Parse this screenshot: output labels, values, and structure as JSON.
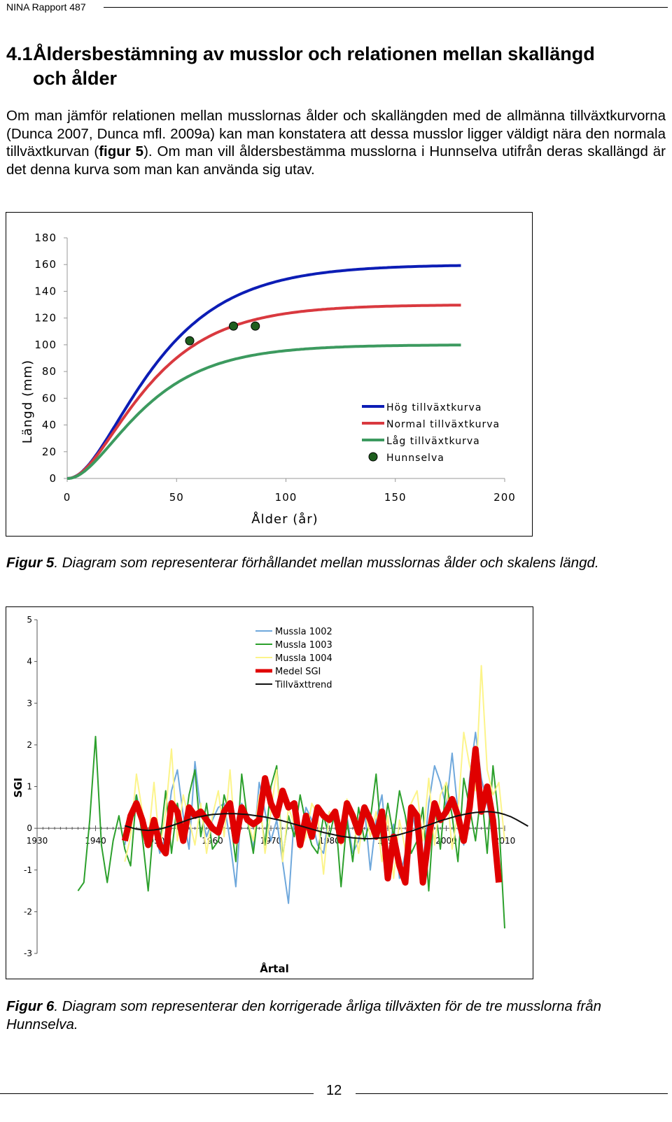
{
  "header": {
    "report": "NINA Rapport 487"
  },
  "section": {
    "number": "4.1",
    "title_line1": "Åldersbestämning av musslor och relationen mellan skallängd",
    "title_line2": "och ålder"
  },
  "body": {
    "p1": "Om man jämför relationen mellan musslornas ålder och skallängden med de allmänna tillväxtkurvorna (Dunca 2007, Dunca mfl. 2009a) kan man konstatera att dessa musslor ligger väldigt nära den normala tillväxtkurvan (",
    "p1_ref": "figur 5",
    "p1_end": "). Om man vill åldersbestämma musslorna i Hunnselva utifrån deras skallängd är det denna kurva som man kan använda sig utav."
  },
  "figure5": {
    "caption_label": "Figur 5",
    "caption_text": ". Diagram som representerar förhållandet mellan musslornas ålder och skalens längd."
  },
  "figure6": {
    "caption_label": "Figur 6",
    "caption_text": ". Diagram som representerar den korrigerade årliga tillväxten för de tre musslorna från Hunnselva."
  },
  "footer": {
    "page": "12"
  },
  "chart_data": [
    {
      "type": "line",
      "title": "",
      "xlabel": "Ålder (år)",
      "ylabel": "Längd (mm)",
      "xlim": [
        0,
        200
      ],
      "ylim": [
        0,
        180
      ],
      "xticks": [
        "0",
        "50",
        "100",
        "150",
        "200"
      ],
      "yticks": [
        "0",
        "20",
        "40",
        "60",
        "80",
        "100",
        "120",
        "140",
        "160",
        "180"
      ],
      "legend_position": "bottom-right",
      "series": [
        {
          "name": "Hög tillväxtkurva",
          "color": "#0c1db5",
          "asymptote": 160,
          "k": 0.0345,
          "x0": 0,
          "xend": 180
        },
        {
          "name": "Normal tillväxtkurva",
          "color": "#d9393f",
          "asymptote": 130,
          "k": 0.0375,
          "x0": 0,
          "xend": 180
        },
        {
          "name": "Låg tillväxtkurva",
          "color": "#3c9a5f",
          "asymptote": 100,
          "k": 0.039,
          "x0": 0,
          "xend": 180
        }
      ],
      "points": {
        "name": "Hunnselva",
        "color": "#1e5e1e",
        "x": [
          56,
          76,
          86
        ],
        "y": [
          103,
          114,
          114
        ]
      }
    },
    {
      "type": "line",
      "title": "",
      "xlabel": "Årtal",
      "ylabel": "SGI",
      "xlim": [
        1930,
        2010
      ],
      "ylim": [
        -3,
        5
      ],
      "xticks": [
        "1930",
        "1940",
        "1950",
        "1960",
        "1970",
        "1980",
        "1990",
        "2000",
        "2010"
      ],
      "yticks": [
        "-3",
        "-2",
        "-1",
        "0",
        "1",
        "2",
        "3",
        "4",
        "5"
      ],
      "legend_position": "top-left",
      "series": [
        {
          "name": "Mussla 1002",
          "color": "#6fa8dc",
          "width": 2,
          "start": 1945,
          "values": [
            -0.4,
            0.4,
            0.8,
            0.2,
            -0.3,
            0.1,
            -0.6,
            -0.2,
            0.9,
            1.4,
            0.3,
            -0.5,
            1.6,
            0.4,
            -0.2,
            0.2,
            0.5,
            0.6,
            -0.3,
            -1.4,
            0.6,
            0.2,
            -0.5,
            1.1,
            0.4,
            -0.3,
            0.2,
            -0.8,
            -1.8,
            0.3,
            -0.4,
            0.5,
            0.2,
            -0.4,
            -0.6,
            0.4,
            0.2,
            -0.2,
            0.3,
            -0.6,
            -0.3,
            0.5,
            -1.0,
            0.2,
            0.8,
            -0.7,
            0.1,
            -1.2,
            -0.6,
            0.5,
            -0.2,
            -0.9,
            0.6,
            1.5,
            1.1,
            0.5,
            1.8,
            0.4,
            -0.4,
            1.2,
            2.3,
            1.2,
            0.6,
            -0.3,
            -1.1
          ]
        },
        {
          "name": "Mussla 1003",
          "color": "#2ca02c",
          "width": 2,
          "start": 1937,
          "values": [
            -1.5,
            -1.3,
            0.2,
            2.2,
            -0.4,
            -1.3,
            -0.3,
            0.3,
            -0.5,
            -0.9,
            0.8,
            -0.2,
            -1.5,
            0.2,
            -0.4,
            0.9,
            -0.6,
            0.6,
            -0.2,
            0.8,
            1.4,
            -0.2,
            0.6,
            -0.5,
            -0.3,
            0.8,
            0.3,
            -0.8,
            1.3,
            0.2,
            -0.6,
            0.6,
            -0.4,
            1.0,
            1.5,
            -0.7,
            0.3,
            -0.2,
            0.8,
            0.1,
            -0.4,
            -0.6,
            0.3,
            -0.2,
            0.4,
            -1.4,
            0.2,
            -0.8,
            0.5,
            -0.3,
            0.2,
            1.3,
            -0.4,
            0.6,
            -0.2,
            0.9,
            0.3,
            -0.6,
            -0.3,
            0.5,
            -1.5,
            0.6,
            -0.5,
            1.1,
            0.3,
            -0.8,
            1.2,
            0.5,
            -0.3,
            0.9,
            -0.6,
            1.5,
            0.2,
            -2.4
          ]
        },
        {
          "name": "Mussla 1004",
          "color": "#fcf48a",
          "width": 2,
          "start": 1945,
          "values": [
            -0.8,
            -0.2,
            1.3,
            0.4,
            -0.3,
            1.1,
            -0.5,
            0.4,
            1.9,
            -0.3,
            0.8,
            0.2,
            -0.4,
            0.6,
            -0.6,
            0.3,
            0.9,
            -0.2,
            1.4,
            -0.4,
            0.5,
            0.2,
            -0.3,
            0.8,
            -0.6,
            0.4,
            1.4,
            -0.8,
            0.5,
            0.1,
            -0.5,
            -0.2,
            0.6,
            0.3,
            -1.1,
            0.4,
            0.2,
            -0.4,
            0.7,
            0.3,
            -0.6,
            0.5,
            -0.2,
            0.4,
            -0.8,
            0.3,
            -1.2,
            0.2,
            -0.5,
            0.6,
            0.9,
            -0.3,
            1.2,
            -0.4,
            0.8,
            1.1,
            -0.5,
            0.4,
            2.3,
            1.5,
            0.9,
            3.9,
            1.4,
            0.8,
            1.1,
            -0.3
          ]
        },
        {
          "name": "Medel SGI",
          "color": "#e00000",
          "width": 9,
          "start": 1945,
          "values": [
            -0.3,
            0.3,
            0.6,
            0.2,
            -0.4,
            0.2,
            -0.4,
            -0.6,
            0.6,
            0.4,
            -0.3,
            0.5,
            0.3,
            0.4,
            0.2,
            0.0,
            -0.1,
            0.4,
            0.6,
            -0.3,
            0.5,
            0.2,
            0.1,
            0.2,
            1.2,
            0.6,
            0.3,
            0.9,
            0.5,
            0.6,
            -0.4,
            0.3,
            -0.2,
            0.5,
            0.3,
            0.2,
            0.4,
            -0.3,
            0.6,
            0.3,
            -0.1,
            0.5,
            0.2,
            -0.2,
            0.4,
            -1.2,
            -0.2,
            -0.9,
            -1.3,
            0.5,
            0.3,
            -1.3,
            -0.2,
            0.6,
            0.2,
            0.4,
            0.7,
            0.3,
            -0.3,
            0.5,
            1.9,
            0.4,
            1.0,
            0.2,
            -1.3
          ]
        },
        {
          "name": "Tillväxttrend",
          "color": "#111111",
          "width": 2,
          "start": 1945,
          "values": [
            0.06,
            0.02,
            -0.02,
            -0.04,
            -0.05,
            -0.04,
            -0.02,
            0.02,
            0.06,
            0.11,
            0.16,
            0.21,
            0.25,
            0.28,
            0.31,
            0.33,
            0.34,
            0.35,
            0.35,
            0.35,
            0.34,
            0.33,
            0.31,
            0.29,
            0.27,
            0.24,
            0.21,
            0.18,
            0.14,
            0.1,
            0.06,
            0.02,
            -0.02,
            -0.06,
            -0.1,
            -0.13,
            -0.16,
            -0.19,
            -0.21,
            -0.23,
            -0.24,
            -0.25,
            -0.25,
            -0.24,
            -0.23,
            -0.21,
            -0.18,
            -0.15,
            -0.11,
            -0.07,
            -0.02,
            0.03,
            0.08,
            0.13,
            0.18,
            0.22,
            0.26,
            0.3,
            0.33,
            0.36,
            0.38,
            0.39,
            0.4,
            0.39,
            0.37,
            0.33,
            0.28,
            0.21,
            0.13,
            0.05
          ]
        }
      ]
    }
  ]
}
